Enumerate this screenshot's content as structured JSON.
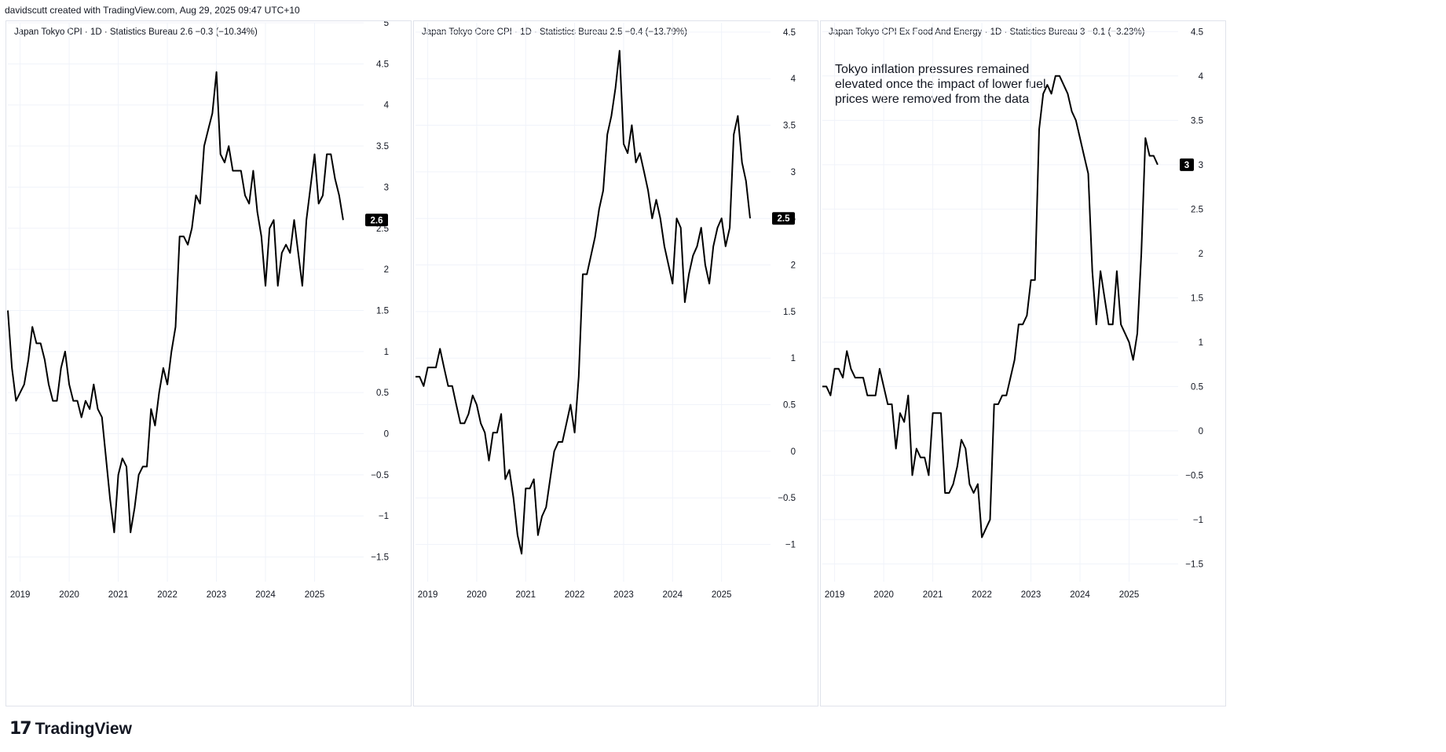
{
  "header": {
    "text": "davidscutt created with TradingView.com, Aug 29, 2025 09:47 UTC+10"
  },
  "footer": {
    "brand": "TradingView",
    "logo_mark": "17"
  },
  "colors": {
    "line": "#000000",
    "grid": "#f0f3fa",
    "border": "#e0e3eb",
    "text": "#131722",
    "badge_bg": "#000000",
    "badge_text": "#ffffff"
  },
  "chart_data": [
    {
      "type": "line",
      "title": "Japan Tokyo CPI · 1D · Statistics Bureau  2.6  −0.3 (−10.34%)",
      "last_value_label": "2.6",
      "ylim": [
        -1.8,
        5
      ],
      "xlim": [
        2018.75,
        2026.0
      ],
      "yticks": [
        5,
        4.5,
        4,
        3.5,
        3,
        2.5,
        2,
        1.5,
        1,
        0.5,
        0,
        -0.5,
        -1,
        -1.5
      ],
      "ytick_labels": [
        "5",
        "4.5",
        "4",
        "3.5",
        "3",
        "2.5",
        "2",
        "1.5",
        "1",
        "0.5",
        "0",
        "−0.5",
        "−1",
        "−1.5"
      ],
      "xticks": [
        2019,
        2020,
        2021,
        2022,
        2023,
        2024,
        2025
      ],
      "xtick_labels": [
        "2019",
        "2020",
        "2021",
        "2022",
        "2023",
        "2024",
        "2025"
      ],
      "series": [
        {
          "x": [
            2018.75,
            2018.833,
            2018.917,
            2019.0,
            2019.083,
            2019.167,
            2019.25,
            2019.333,
            2019.417,
            2019.5,
            2019.583,
            2019.667,
            2019.75,
            2019.833,
            2019.917,
            2020.0,
            2020.083,
            2020.167,
            2020.25,
            2020.333,
            2020.417,
            2020.5,
            2020.583,
            2020.667,
            2020.75,
            2020.833,
            2020.917,
            2021.0,
            2021.083,
            2021.167,
            2021.25,
            2021.333,
            2021.417,
            2021.5,
            2021.583,
            2021.667,
            2021.75,
            2021.833,
            2021.917,
            2022.0,
            2022.083,
            2022.167,
            2022.25,
            2022.333,
            2022.417,
            2022.5,
            2022.583,
            2022.667,
            2022.75,
            2022.833,
            2022.917,
            2023.0,
            2023.083,
            2023.167,
            2023.25,
            2023.333,
            2023.417,
            2023.5,
            2023.583,
            2023.667,
            2023.75,
            2023.833,
            2023.917,
            2024.0,
            2024.083,
            2024.167,
            2024.25,
            2024.333,
            2024.417,
            2024.5,
            2024.583,
            2024.667,
            2024.75,
            2024.833,
            2024.917,
            2025.0,
            2025.083,
            2025.167,
            2025.25,
            2025.333,
            2025.417,
            2025.5,
            2025.583
          ],
          "y": [
            1.5,
            0.8,
            0.4,
            0.5,
            0.6,
            0.9,
            1.3,
            1.1,
            1.1,
            0.9,
            0.6,
            0.4,
            0.4,
            0.8,
            1.0,
            0.6,
            0.4,
            0.4,
            0.2,
            0.4,
            0.3,
            0.6,
            0.3,
            0.2,
            -0.3,
            -0.8,
            -1.2,
            -0.5,
            -0.3,
            -0.4,
            -1.2,
            -0.9,
            -0.5,
            -0.4,
            -0.4,
            0.3,
            0.1,
            0.5,
            0.8,
            0.6,
            1.0,
            1.3,
            2.4,
            2.4,
            2.3,
            2.5,
            2.9,
            2.8,
            3.5,
            3.7,
            3.9,
            4.4,
            3.4,
            3.3,
            3.5,
            3.2,
            3.2,
            3.2,
            2.9,
            2.8,
            3.2,
            2.7,
            2.4,
            1.8,
            2.5,
            2.6,
            1.8,
            2.2,
            2.3,
            2.2,
            2.6,
            2.2,
            1.8,
            2.6,
            3.0,
            3.4,
            2.8,
            2.9,
            3.4,
            3.4,
            3.1,
            2.9,
            2.6
          ]
        }
      ]
    },
    {
      "type": "line",
      "title": "Japan Tokyo Core CPI · 1D · Statistics Bureau  2.5  −0.4 (−13.79%)",
      "last_value_label": "2.5",
      "ylim": [
        -1.4,
        4.6
      ],
      "xlim": [
        2018.75,
        2026.0
      ],
      "yticks": [
        4.5,
        4,
        3.5,
        3,
        2.5,
        2,
        1.5,
        1,
        0.5,
        0,
        -0.5,
        -1
      ],
      "ytick_labels": [
        "4.5",
        "4",
        "3.5",
        "3",
        "2.5",
        "2",
        "1.5",
        "1",
        "0.5",
        "0",
        "−0.5",
        "−1"
      ],
      "xticks": [
        2019,
        2020,
        2021,
        2022,
        2023,
        2024,
        2025
      ],
      "xtick_labels": [
        "2019",
        "2020",
        "2021",
        "2022",
        "2023",
        "2024",
        "2025"
      ],
      "series": [
        {
          "x": [
            2018.75,
            2018.833,
            2018.917,
            2019.0,
            2019.083,
            2019.167,
            2019.25,
            2019.333,
            2019.417,
            2019.5,
            2019.583,
            2019.667,
            2019.75,
            2019.833,
            2019.917,
            2020.0,
            2020.083,
            2020.167,
            2020.25,
            2020.333,
            2020.417,
            2020.5,
            2020.583,
            2020.667,
            2020.75,
            2020.833,
            2020.917,
            2021.0,
            2021.083,
            2021.167,
            2021.25,
            2021.333,
            2021.417,
            2021.5,
            2021.583,
            2021.667,
            2021.75,
            2021.833,
            2021.917,
            2022.0,
            2022.083,
            2022.167,
            2022.25,
            2022.333,
            2022.417,
            2022.5,
            2022.583,
            2022.667,
            2022.75,
            2022.833,
            2022.917,
            2023.0,
            2023.083,
            2023.167,
            2023.25,
            2023.333,
            2023.417,
            2023.5,
            2023.583,
            2023.667,
            2023.75,
            2023.833,
            2023.917,
            2024.0,
            2024.083,
            2024.167,
            2024.25,
            2024.333,
            2024.417,
            2024.5,
            2024.583,
            2024.667,
            2024.75,
            2024.833,
            2024.917,
            2025.0,
            2025.083,
            2025.167,
            2025.25,
            2025.333,
            2025.417,
            2025.5,
            2025.583
          ],
          "y": [
            0.8,
            0.8,
            0.7,
            0.9,
            0.9,
            0.9,
            1.1,
            0.9,
            0.7,
            0.7,
            0.5,
            0.3,
            0.3,
            0.4,
            0.6,
            0.5,
            0.3,
            0.2,
            -0.1,
            0.2,
            0.2,
            0.4,
            -0.3,
            -0.2,
            -0.5,
            -0.9,
            -1.1,
            -0.4,
            -0.4,
            -0.3,
            -0.9,
            -0.7,
            -0.6,
            -0.3,
            0.0,
            0.1,
            0.1,
            0.3,
            0.5,
            0.2,
            0.8,
            1.9,
            1.9,
            2.1,
            2.3,
            2.6,
            2.8,
            3.4,
            3.6,
            3.9,
            4.3,
            3.3,
            3.2,
            3.5,
            3.1,
            3.2,
            3.0,
            2.8,
            2.5,
            2.7,
            2.5,
            2.2,
            2.0,
            1.8,
            2.5,
            2.4,
            1.6,
            1.9,
            2.1,
            2.2,
            2.4,
            2.0,
            1.8,
            2.2,
            2.4,
            2.5,
            2.2,
            2.4,
            3.4,
            3.6,
            3.1,
            2.9,
            2.5
          ]
        }
      ]
    },
    {
      "type": "line",
      "title": "Japan Tokyo CPI Ex Food And Energy · 1D · Statistics Bureau  3  −0.1 (−3.23%)",
      "last_value_label": "3",
      "ylim": [
        -1.7,
        4.6
      ],
      "xlim": [
        2018.75,
        2026.0
      ],
      "yticks": [
        4.5,
        4,
        3.5,
        3,
        2.5,
        2,
        1.5,
        1,
        0.5,
        0,
        -0.5,
        -1,
        -1.5
      ],
      "ytick_labels": [
        "4.5",
        "4",
        "3.5",
        "3",
        "2.5",
        "2",
        "1.5",
        "1",
        "0.5",
        "0",
        "−0.5",
        "−1",
        "−1.5"
      ],
      "xticks": [
        2019,
        2020,
        2021,
        2022,
        2023,
        2024,
        2025
      ],
      "xtick_labels": [
        "2019",
        "2020",
        "2021",
        "2022",
        "2023",
        "2024",
        "2025"
      ],
      "annotation": "Tokyo inflation pressures remained elevated once the impact of lower fuel prices were removed from the data",
      "series": [
        {
          "x": [
            2018.75,
            2018.833,
            2018.917,
            2019.0,
            2019.083,
            2019.167,
            2019.25,
            2019.333,
            2019.417,
            2019.5,
            2019.583,
            2019.667,
            2019.75,
            2019.833,
            2019.917,
            2020.0,
            2020.083,
            2020.167,
            2020.25,
            2020.333,
            2020.417,
            2020.5,
            2020.583,
            2020.667,
            2020.75,
            2020.833,
            2020.917,
            2021.0,
            2021.083,
            2021.167,
            2021.25,
            2021.333,
            2021.417,
            2021.5,
            2021.583,
            2021.667,
            2021.75,
            2021.833,
            2021.917,
            2022.0,
            2022.083,
            2022.167,
            2022.25,
            2022.333,
            2022.417,
            2022.5,
            2022.583,
            2022.667,
            2022.75,
            2022.833,
            2022.917,
            2023.0,
            2023.083,
            2023.167,
            2023.25,
            2023.333,
            2023.417,
            2023.5,
            2023.583,
            2023.667,
            2023.75,
            2023.833,
            2023.917,
            2024.0,
            2024.083,
            2024.167,
            2024.25,
            2024.333,
            2024.417,
            2024.5,
            2024.583,
            2024.667,
            2024.75,
            2024.833,
            2024.917,
            2025.0,
            2025.083,
            2025.167,
            2025.25,
            2025.333,
            2025.417,
            2025.5,
            2025.583
          ],
          "y": [
            0.5,
            0.5,
            0.4,
            0.7,
            0.7,
            0.6,
            0.9,
            0.7,
            0.6,
            0.6,
            0.6,
            0.4,
            0.4,
            0.4,
            0.7,
            0.5,
            0.3,
            0.3,
            -0.2,
            0.2,
            0.1,
            0.4,
            -0.5,
            -0.2,
            -0.3,
            -0.3,
            -0.5,
            0.2,
            0.2,
            0.2,
            -0.7,
            -0.7,
            -0.6,
            -0.4,
            -0.1,
            -0.2,
            -0.6,
            -0.7,
            -0.6,
            -1.2,
            -1.1,
            -1.0,
            0.3,
            0.3,
            0.4,
            0.4,
            0.6,
            0.8,
            1.2,
            1.2,
            1.3,
            1.7,
            1.7,
            3.4,
            3.8,
            3.9,
            3.8,
            4.0,
            4.0,
            3.9,
            3.8,
            3.6,
            3.5,
            3.3,
            3.1,
            2.9,
            1.8,
            1.2,
            1.8,
            1.5,
            1.2,
            1.2,
            1.8,
            1.2,
            1.1,
            1.0,
            0.8,
            1.1,
            2.0,
            3.3,
            3.1,
            3.1,
            3.0
          ]
        }
      ]
    }
  ]
}
